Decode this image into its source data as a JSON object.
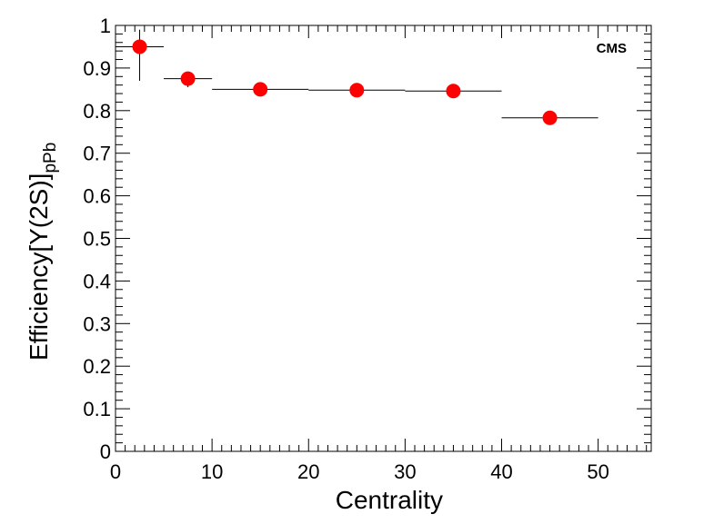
{
  "chart_data": {
    "type": "scatter",
    "label": "CMS",
    "xlabel": "Centrality",
    "ylabel": {
      "main": "Efficiency[Υ(2S)]",
      "sub": "pPb"
    },
    "xlim": [
      0,
      55.5
    ],
    "ylim": [
      0,
      1
    ],
    "xticks": [
      0,
      10,
      20,
      30,
      40,
      50
    ],
    "xtick_labels": [
      "0",
      "10",
      "20",
      "30",
      "40",
      "50"
    ],
    "yticks": [
      0,
      0.1,
      0.2,
      0.3,
      0.4,
      0.5,
      0.6,
      0.7,
      0.8,
      0.9,
      1
    ],
    "ytick_labels": [
      "0",
      "0.1",
      "0.2",
      "0.3",
      "0.4",
      "0.5",
      "0.6",
      "0.7",
      "0.8",
      "0.9",
      "1"
    ],
    "grid": false,
    "marker_color": "#ff0000",
    "points": [
      {
        "x": 2.5,
        "xlo": 0,
        "xhi": 5,
        "y": 0.95,
        "ylo": 0.87,
        "yhi": 0.99
      },
      {
        "x": 7.5,
        "xlo": 5,
        "xhi": 10,
        "y": 0.875,
        "ylo": 0.855,
        "yhi": 0.89
      },
      {
        "x": 15,
        "xlo": 10,
        "xhi": 20,
        "y": 0.85,
        "ylo": 0.846,
        "yhi": 0.854
      },
      {
        "x": 25,
        "xlo": 20,
        "xhi": 30,
        "y": 0.848,
        "ylo": 0.844,
        "yhi": 0.852
      },
      {
        "x": 35,
        "xlo": 30,
        "xhi": 40,
        "y": 0.846,
        "ylo": 0.842,
        "yhi": 0.85
      },
      {
        "x": 45,
        "xlo": 40,
        "xhi": 50,
        "y": 0.783,
        "ylo": 0.779,
        "yhi": 0.787
      }
    ]
  }
}
